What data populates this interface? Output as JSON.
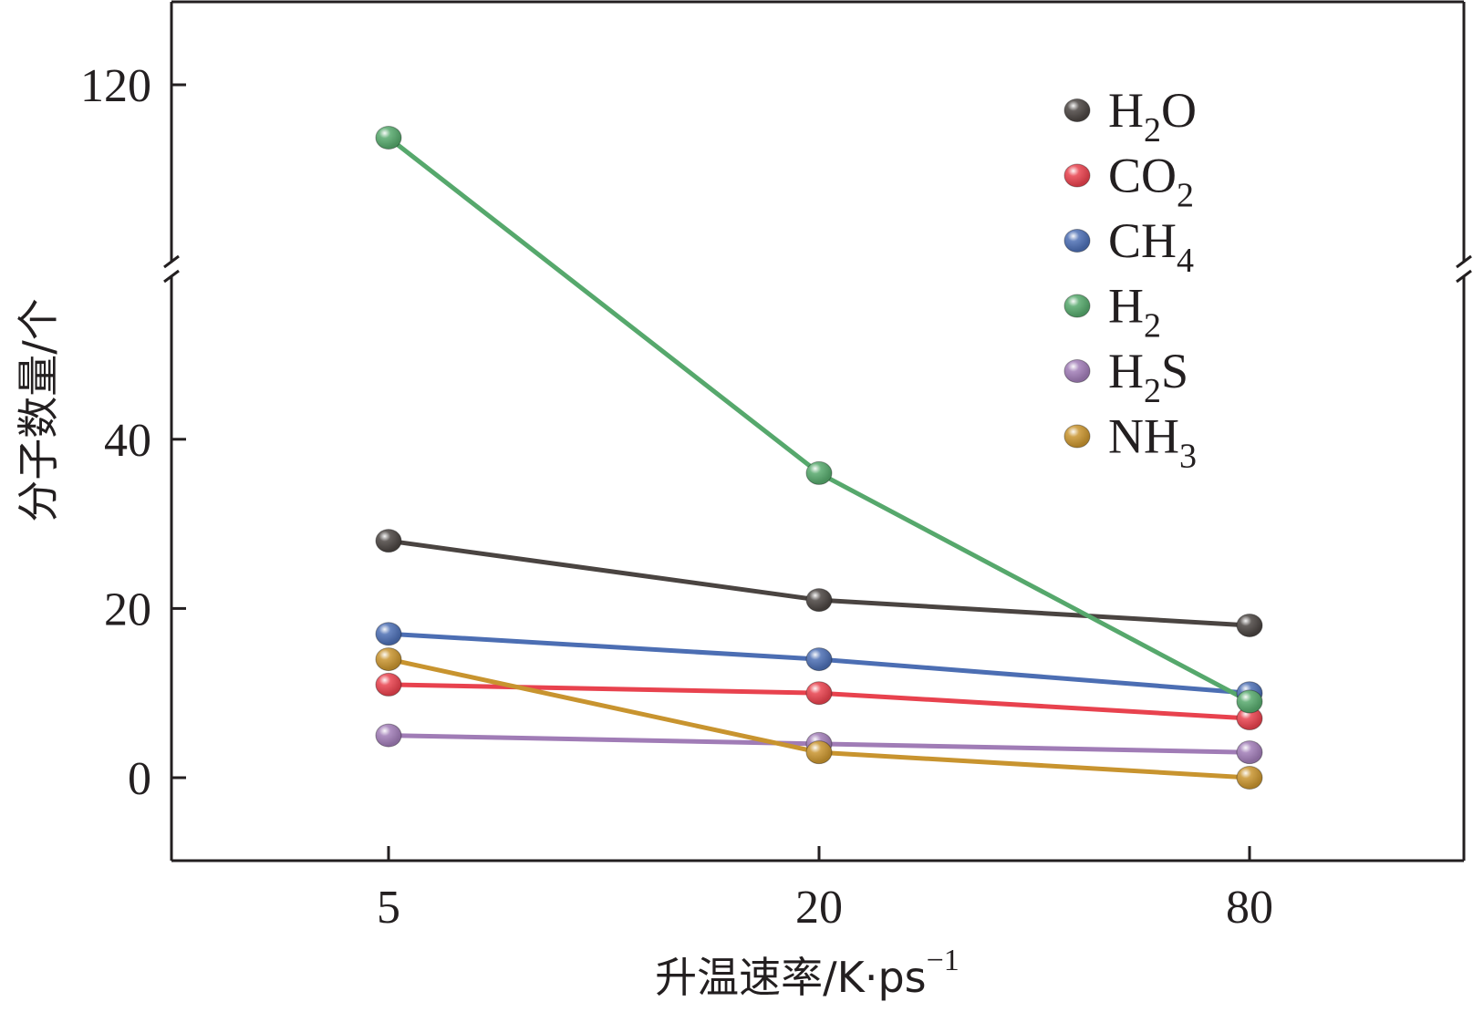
{
  "chart_data": {
    "type": "line",
    "xlabel": "升温速率/K·ps",
    "xlabel_superscript": "−1",
    "ylabel": "分子数量/个",
    "categories": [
      "5",
      "20",
      "80"
    ],
    "yticks": [
      0,
      20,
      40,
      120
    ],
    "ylim": [
      -10,
      130
    ],
    "y_axis_break": {
      "lower_max": 60,
      "upper_min": 110
    },
    "grid": false,
    "legend_position": "top-right",
    "series": [
      {
        "name": "H2O",
        "base": "H",
        "sub": "2",
        "suffix": "O",
        "color": "#4a4441",
        "values": [
          28,
          21,
          18
        ]
      },
      {
        "name": "CO2",
        "base": "CO",
        "sub": "2",
        "suffix": "",
        "color": "#e8424e",
        "values": [
          11,
          10,
          7
        ]
      },
      {
        "name": "CH4",
        "base": "CH",
        "sub": "4",
        "suffix": "",
        "color": "#4c6eb3",
        "values": [
          17,
          14,
          10
        ]
      },
      {
        "name": "H2",
        "base": "H",
        "sub": "2",
        "suffix": "",
        "color": "#56a86c",
        "values": [
          112,
          36,
          9
        ]
      },
      {
        "name": "H2S",
        "base": "H",
        "sub": "2",
        "suffix": "S",
        "color": "#a07cb6",
        "values": [
          5,
          4,
          3
        ]
      },
      {
        "name": "NH3",
        "base": "NH",
        "sub": "3",
        "suffix": "",
        "color": "#c8942f",
        "values": [
          14,
          3,
          0
        ]
      }
    ]
  }
}
